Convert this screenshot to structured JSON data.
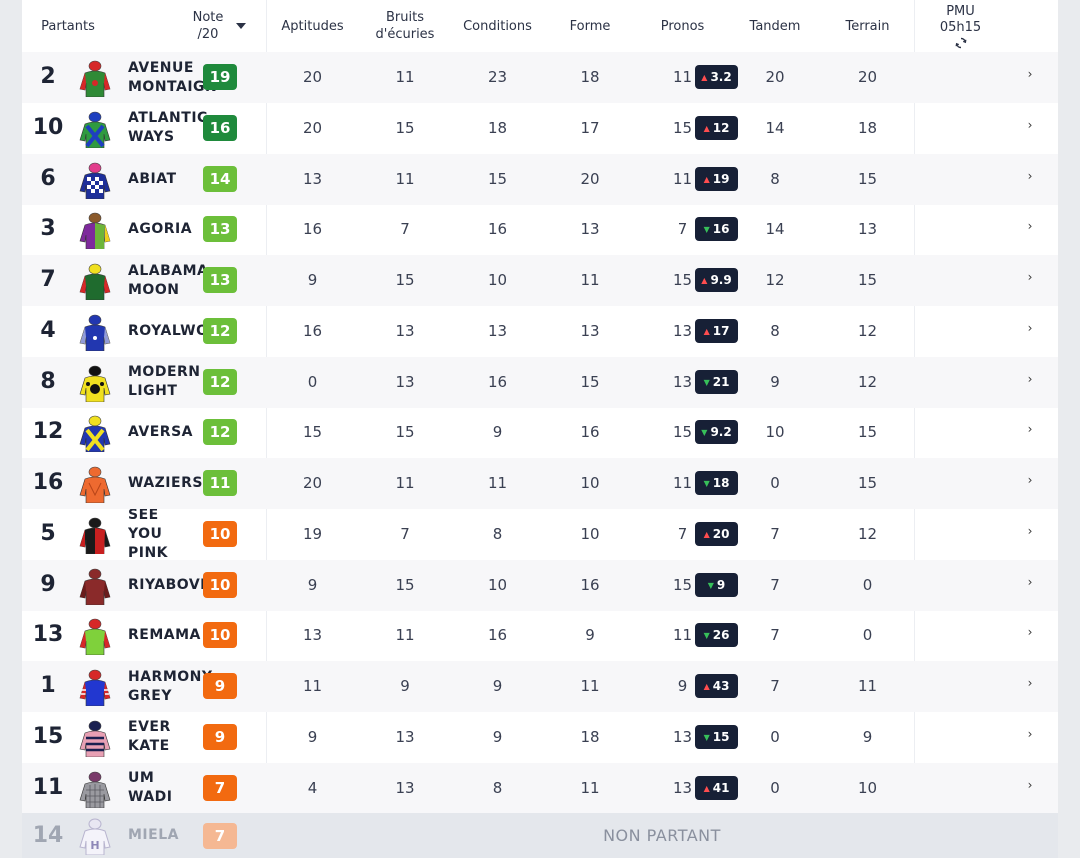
{
  "header": {
    "partants": "Partants",
    "note_line1": "Note",
    "note_line2": "/20",
    "aptitudes": "Aptitudes",
    "bruits_line1": "Bruits",
    "bruits_line2": "d'écuries",
    "conditions": "Conditions",
    "forme": "Forme",
    "pronos": "Pronos",
    "tandem": "Tandem",
    "terrain": "Terrain",
    "pmu_line1": "PMU",
    "pmu_line2": "05h15"
  },
  "colors": {
    "note_dark_green": "#1f8a3c",
    "note_green": "#6cbf3a",
    "note_orange": "#f26a10",
    "note_faded_orange": "#f5b893",
    "odds_bg": "#172036",
    "odds_up": "#ff4d4f",
    "odds_down": "#37c05a"
  },
  "rows": [
    {
      "num": "2",
      "name": "AVENUE\nMONTAIGNE",
      "note": "19",
      "note_color": "#1f8a3c",
      "aptitudes": "20",
      "bruits": "11",
      "conditions": "23",
      "forme": "18",
      "pronos": "11",
      "tandem": "20",
      "terrain": "20",
      "odds": "3.2",
      "trend": "up",
      "silk": "red-green"
    },
    {
      "num": "10",
      "name": "ATLANTIC\nWAYS",
      "note": "16",
      "note_color": "#1f8a3c",
      "aptitudes": "20",
      "bruits": "15",
      "conditions": "18",
      "forme": "17",
      "pronos": "15",
      "tandem": "14",
      "terrain": "18",
      "odds": "12",
      "trend": "up",
      "silk": "green-blue-cross"
    },
    {
      "num": "6",
      "name": "ABIAT",
      "note": "14",
      "note_color": "#6cbf3a",
      "aptitudes": "13",
      "bruits": "11",
      "conditions": "15",
      "forme": "20",
      "pronos": "11",
      "tandem": "8",
      "terrain": "15",
      "odds": "19",
      "trend": "up",
      "silk": "blue-white-check"
    },
    {
      "num": "3",
      "name": "AGORIA",
      "note": "13",
      "note_color": "#6cbf3a",
      "aptitudes": "16",
      "bruits": "7",
      "conditions": "16",
      "forme": "13",
      "pronos": "7",
      "tandem": "14",
      "terrain": "13",
      "odds": "16",
      "trend": "down",
      "silk": "purple-green"
    },
    {
      "num": "7",
      "name": "ALABAMA\nMOON",
      "note": "13",
      "note_color": "#6cbf3a",
      "aptitudes": "9",
      "bruits": "15",
      "conditions": "10",
      "forme": "11",
      "pronos": "15",
      "tandem": "12",
      "terrain": "15",
      "odds": "9.9",
      "trend": "up",
      "silk": "green-red-yellow"
    },
    {
      "num": "4",
      "name": "ROYALWOOD",
      "note": "12",
      "note_color": "#6cbf3a",
      "aptitudes": "16",
      "bruits": "13",
      "conditions": "13",
      "forme": "13",
      "pronos": "13",
      "tandem": "8",
      "terrain": "12",
      "odds": "17",
      "trend": "up",
      "silk": "blue-stars"
    },
    {
      "num": "8",
      "name": "MODERN\nLIGHT",
      "note": "12",
      "note_color": "#6cbf3a",
      "aptitudes": "0",
      "bruits": "13",
      "conditions": "16",
      "forme": "15",
      "pronos": "13",
      "tandem": "9",
      "terrain": "12",
      "odds": "21",
      "trend": "down",
      "silk": "yellow-black-dots"
    },
    {
      "num": "12",
      "name": "AVERSA",
      "note": "12",
      "note_color": "#6cbf3a",
      "aptitudes": "15",
      "bruits": "15",
      "conditions": "9",
      "forme": "16",
      "pronos": "15",
      "tandem": "10",
      "terrain": "15",
      "odds": "9.2",
      "trend": "down",
      "silk": "blue-yellow-cross"
    },
    {
      "num": "16",
      "name": "WAZIERS",
      "note": "11",
      "note_color": "#6cbf3a",
      "aptitudes": "20",
      "bruits": "11",
      "conditions": "11",
      "forme": "10",
      "pronos": "11",
      "tandem": "0",
      "terrain": "15",
      "odds": "18",
      "trend": "down",
      "silk": "orange"
    },
    {
      "num": "5",
      "name": "SEE\nYOU\nPINK",
      "note": "10",
      "note_color": "#f26a10",
      "aptitudes": "19",
      "bruits": "7",
      "conditions": "8",
      "forme": "10",
      "pronos": "7",
      "tandem": "7",
      "terrain": "12",
      "odds": "20",
      "trend": "up",
      "silk": "black-red"
    },
    {
      "num": "9",
      "name": "RIYABOVKA",
      "note": "10",
      "note_color": "#f26a10",
      "aptitudes": "9",
      "bruits": "15",
      "conditions": "10",
      "forme": "16",
      "pronos": "15",
      "tandem": "7",
      "terrain": "0",
      "odds": "9",
      "trend": "down",
      "silk": "maroon"
    },
    {
      "num": "13",
      "name": "REMAMA",
      "note": "10",
      "note_color": "#f26a10",
      "aptitudes": "13",
      "bruits": "11",
      "conditions": "16",
      "forme": "9",
      "pronos": "11",
      "tandem": "7",
      "terrain": "0",
      "odds": "26",
      "trend": "down",
      "silk": "light-green-red"
    },
    {
      "num": "1",
      "name": "HARMONY\nGREY",
      "note": "9",
      "note_color": "#f26a10",
      "aptitudes": "11",
      "bruits": "9",
      "conditions": "9",
      "forme": "11",
      "pronos": "9",
      "tandem": "7",
      "terrain": "11",
      "odds": "43",
      "trend": "up",
      "silk": "blue-red-white"
    },
    {
      "num": "15",
      "name": "EVER\nKATE",
      "note": "9",
      "note_color": "#f26a10",
      "aptitudes": "9",
      "bruits": "13",
      "conditions": "9",
      "forme": "18",
      "pronos": "13",
      "tandem": "0",
      "terrain": "9",
      "odds": "15",
      "trend": "down",
      "silk": "navy-pink-stripes"
    },
    {
      "num": "11",
      "name": "UM\nWADI",
      "note": "7",
      "note_color": "#f26a10",
      "aptitudes": "4",
      "bruits": "13",
      "conditions": "8",
      "forme": "11",
      "pronos": "13",
      "tandem": "0",
      "terrain": "10",
      "odds": "41",
      "trend": "up",
      "silk": "grey-check"
    }
  ],
  "non_partant": {
    "num": "14",
    "name": "MIELA",
    "note": "7",
    "note_color": "#f5b893",
    "label": "NON PARTANT",
    "silk": "white-h"
  }
}
